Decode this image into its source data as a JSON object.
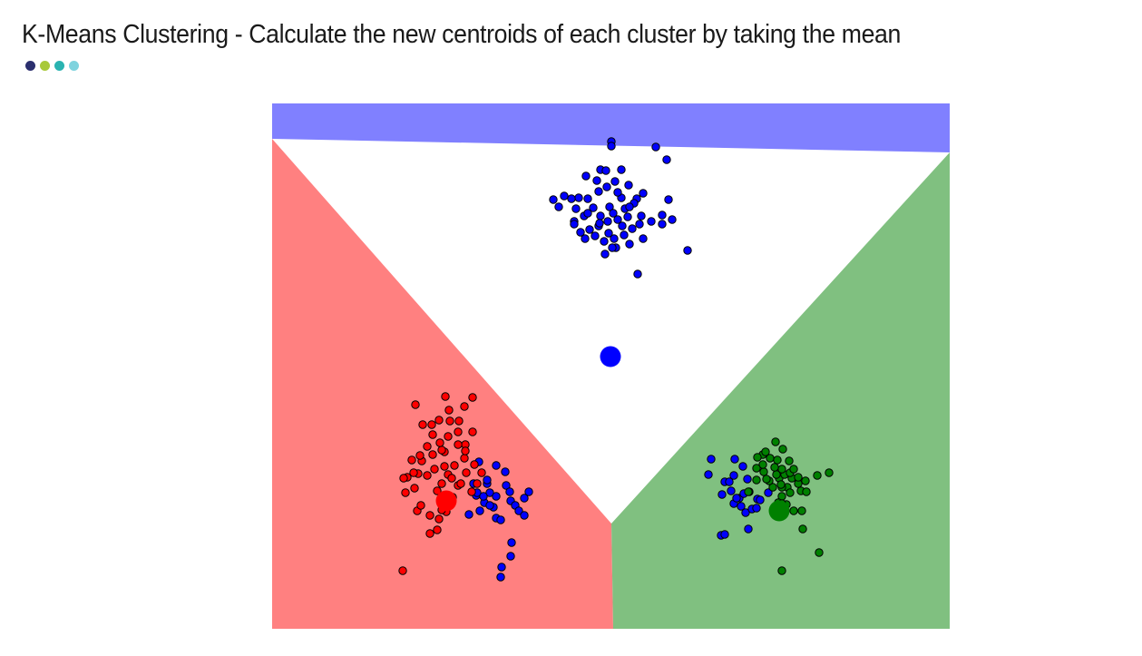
{
  "slide": {
    "title": "K-Means Clustering - Calculate the new centroids of each cluster by taking the mean",
    "accent_dots": [
      "#2b2f6e",
      "#a8c93a",
      "#2ab3b1",
      "#7fd3de"
    ]
  },
  "chart_data": {
    "type": "scatter",
    "title": "",
    "xlabel": "",
    "ylabel": "",
    "xlim": [
      0,
      747
    ],
    "ylim": [
      0,
      579
    ],
    "axes_visible": false,
    "grid": false,
    "regions": [
      {
        "cluster": "blue",
        "color": "#8080ff",
        "polygon": [
          [
            0,
            579
          ],
          [
            0,
            540
          ],
          [
            747,
            525
          ],
          [
            747,
            579
          ]
        ]
      },
      {
        "cluster": "red",
        "color": "#ff8080",
        "polygon": [
          [
            0,
            0
          ],
          [
            0,
            540
          ],
          [
            374,
            116
          ],
          [
            376,
            0
          ]
        ]
      },
      {
        "cluster": "green",
        "color": "#80c080",
        "polygon": [
          [
            376,
            0
          ],
          [
            374,
            116
          ],
          [
            747,
            525
          ],
          [
            747,
            0
          ]
        ]
      }
    ],
    "series": [
      {
        "cluster": "blue",
        "color": "#0000ff",
        "points": [
          [
            374,
            537
          ],
          [
            374,
            532
          ],
          [
            423,
            531
          ],
          [
            435,
            517
          ],
          [
            338,
            475
          ],
          [
            362,
            506
          ],
          [
            369,
            487
          ],
          [
            378,
            493
          ],
          [
            385,
            506
          ],
          [
            393,
            489
          ],
          [
            385,
            475
          ],
          [
            372,
            465
          ],
          [
            362,
            455
          ],
          [
            348,
            474
          ],
          [
            335,
            463
          ],
          [
            322,
            477
          ],
          [
            310,
            473
          ],
          [
            316,
            465
          ],
          [
            333,
            449
          ],
          [
            344,
            455
          ],
          [
            354,
            464
          ],
          [
            346,
            499
          ],
          [
            358,
            494
          ],
          [
            368,
            505
          ],
          [
            360,
            482
          ],
          [
            376,
            458
          ],
          [
            389,
            463
          ],
          [
            402,
            474
          ],
          [
            409,
            480
          ],
          [
            399,
            469
          ],
          [
            392,
            454
          ],
          [
            381,
            451
          ],
          [
            370,
            449
          ],
          [
            360,
            444
          ],
          [
            350,
            440
          ],
          [
            340,
            437
          ],
          [
            333,
            446
          ],
          [
            345,
            430
          ],
          [
            356,
            433
          ],
          [
            366,
            427
          ],
          [
            377,
            430
          ],
          [
            388,
            434
          ],
          [
            397,
            441
          ],
          [
            405,
            446
          ],
          [
            418,
            449
          ],
          [
            430,
            456
          ],
          [
            441,
            451
          ],
          [
            409,
            430
          ],
          [
            394,
            424
          ],
          [
            379,
            420
          ],
          [
            367,
            413
          ],
          [
            375,
            420
          ],
          [
            403,
            391
          ],
          [
            458,
            417
          ],
          [
            437,
            473
          ],
          [
            430,
            446
          ],
          [
            407,
            455
          ],
          [
            386,
            444
          ],
          [
            371,
            436
          ],
          [
            361,
            447
          ],
          [
            348,
            458
          ],
          [
            330,
            474
          ],
          [
            381,
            481
          ],
          [
            394,
            465
          ],
          [
            228,
            184
          ],
          [
            247,
            180
          ],
          [
            257,
            173
          ],
          [
            237,
            160
          ],
          [
            225,
            147
          ],
          [
            240,
            150
          ],
          [
            258,
            158
          ],
          [
            263,
            141
          ],
          [
            244,
            134
          ],
          [
            268,
            136
          ],
          [
            278,
            144
          ],
          [
            262,
            151
          ],
          [
            234,
            139
          ],
          [
            247,
            122
          ],
          [
            226,
            150
          ],
          [
            217,
            126
          ],
          [
            283,
            151
          ],
          [
            272,
            130
          ],
          [
            247,
            146
          ],
          [
            240,
            136
          ],
          [
            278,
            125
          ],
          [
            264,
            95
          ],
          [
            253,
            68
          ],
          [
            252,
            57
          ],
          [
            263,
            80
          ],
          [
            229,
            130
          ],
          [
            233,
            146
          ],
          [
            252,
            120
          ],
          [
            237,
            164
          ],
          [
            222,
            160
          ],
          [
            510,
            187
          ],
          [
            484,
            187
          ],
          [
            481,
            170
          ],
          [
            499,
            162
          ],
          [
            506,
            152
          ],
          [
            515,
            144
          ],
          [
            520,
            149
          ],
          [
            522,
            128
          ],
          [
            525,
            110
          ],
          [
            529,
            132
          ],
          [
            535,
            143
          ],
          [
            547,
            150
          ],
          [
            496,
            148
          ],
          [
            509,
            138
          ],
          [
            524,
            165
          ],
          [
            526,
            151
          ],
          [
            504,
            162
          ],
          [
            495,
            103
          ],
          [
            499,
            104
          ],
          [
            519,
            179
          ],
          [
            538,
            142
          ],
          [
            534,
            133
          ],
          [
            512,
            144
          ],
          [
            509,
            169
          ],
          [
            517,
            135
          ]
        ]
      },
      {
        "cluster": "red",
        "color": "#ff0000",
        "points": [
          [
            221,
            217
          ],
          [
            205,
            217
          ],
          [
            213,
            203
          ],
          [
            190,
            195
          ],
          [
            212,
            188
          ],
          [
            201,
            180
          ],
          [
            194,
            170
          ],
          [
            214,
            172
          ],
          [
            205,
            158
          ],
          [
            182,
            152
          ],
          [
            196,
            143
          ],
          [
            192,
            129
          ],
          [
            184,
            121
          ],
          [
            174,
            105
          ],
          [
            160,
            130
          ],
          [
            174,
            125
          ],
          [
            164,
            136
          ],
          [
            157,
            155
          ],
          [
            149,
            167
          ],
          [
            165,
            185
          ],
          [
            177,
            192
          ],
          [
            190,
            179
          ],
          [
            198,
            166
          ],
          [
            208,
            160
          ],
          [
            220,
            151
          ],
          [
            226,
            160
          ],
          [
            231,
            172
          ],
          [
            223,
            181
          ],
          [
            213,
            196
          ],
          [
            144,
            64
          ],
          [
            182,
            109
          ],
          [
            187,
            131
          ],
          [
            199,
            145
          ],
          [
            179,
            176
          ],
          [
            171,
            169
          ],
          [
            161,
            171
          ],
          [
            154,
            186
          ],
          [
            163,
            191
          ],
          [
            171,
            201
          ],
          [
            187,
            197
          ],
          [
            185,
            205
          ],
          [
            177,
            214
          ],
          [
            194,
            212
          ],
          [
            205,
            203
          ],
          [
            196,
            229
          ],
          [
            191,
            256
          ],
          [
            221,
            255
          ],
          [
            212,
            245
          ],
          [
            206,
            229
          ],
          [
            195,
            241
          ],
          [
            184,
            230
          ],
          [
            176,
            225
          ],
          [
            166,
            225
          ],
          [
            158,
            247
          ],
          [
            145,
            166
          ],
          [
            156,
            172
          ],
          [
            187,
            160
          ],
          [
            147,
            150
          ]
        ]
      },
      {
        "cluster": "green",
        "color": "#008000",
        "points": [
          [
            541,
            192
          ],
          [
            555,
            206
          ],
          [
            563,
            198
          ],
          [
            570,
            185
          ],
          [
            573,
            166
          ],
          [
            568,
            156
          ],
          [
            580,
            160
          ],
          [
            583,
            152
          ],
          [
            588,
            163
          ],
          [
            580,
            167
          ],
          [
            571,
            150
          ],
          [
            562,
            156
          ],
          [
            559,
            166
          ],
          [
            556,
            170
          ],
          [
            552,
            156
          ],
          [
            562,
            146
          ],
          [
            548,
            163
          ],
          [
            542,
            173
          ],
          [
            534,
            164
          ],
          [
            525,
            151
          ],
          [
            535,
            189
          ],
          [
            545,
            165
          ],
          [
            558,
            139
          ],
          [
            567,
            137
          ],
          [
            575,
            130
          ],
          [
            584,
            130
          ],
          [
            561,
            159
          ],
          [
            565,
            170
          ],
          [
            571,
            172
          ],
          [
            575,
            176
          ],
          [
            549,
            188
          ],
          [
            544,
            195
          ],
          [
            557,
            186
          ],
          [
            562,
            176
          ],
          [
            541,
            181
          ],
          [
            534,
            177
          ],
          [
            554,
            178
          ],
          [
            601,
            169
          ],
          [
            614,
            172
          ],
          [
            562,
            64
          ],
          [
            603,
            84
          ],
          [
            585,
            110
          ],
          [
            589,
            151
          ],
          [
            562,
            138
          ]
        ]
      }
    ],
    "centroids": [
      {
        "cluster": "blue",
        "color": "#0000ff",
        "x": 373,
        "y": 300
      },
      {
        "cluster": "red",
        "color": "#ff0000",
        "x": 192,
        "y": 141
      },
      {
        "cluster": "green",
        "color": "#008000",
        "x": 559,
        "y": 130
      }
    ]
  }
}
